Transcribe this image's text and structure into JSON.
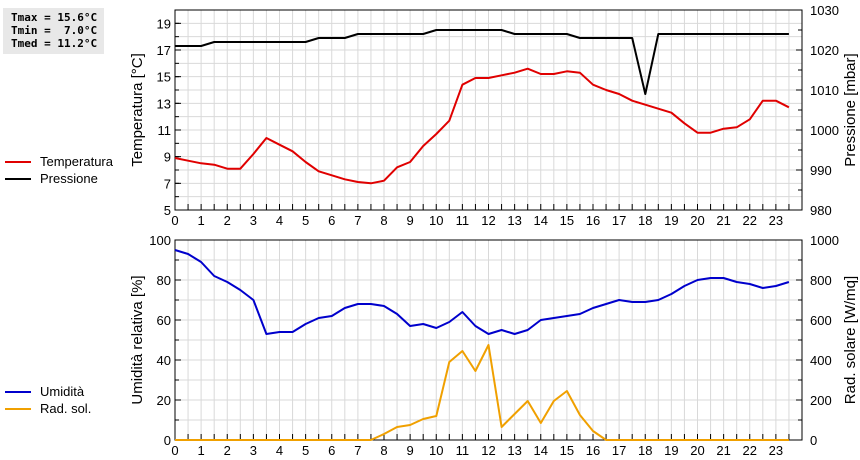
{
  "stats": {
    "tmax": "Tmax = 15.6°C",
    "tmin": "Tmin =  7.0°C",
    "tmed": "Tmed = 11.2°C"
  },
  "legend_top": [
    {
      "label": "Temperatura",
      "color": "#e00000"
    },
    {
      "label": "Pressione",
      "color": "#000000"
    }
  ],
  "legend_bottom": [
    {
      "label": "Umidità",
      "color": "#0000cc"
    },
    {
      "label": "Rad. sol.",
      "color": "#f0a000"
    }
  ],
  "chart_data": [
    {
      "type": "line",
      "title": "",
      "xlabel": "",
      "ylabel": "Temperatura [°C]",
      "y2label": "Pressione [mbar]",
      "ylim": [
        5,
        20
      ],
      "y2lim": [
        980,
        1030
      ],
      "yticks": [
        5,
        7,
        9,
        11,
        13,
        15,
        17,
        19
      ],
      "y2ticks": [
        980,
        990,
        1000,
        1010,
        1020,
        1030
      ],
      "xticks": [
        0,
        1,
        2,
        3,
        4,
        5,
        6,
        7,
        8,
        9,
        10,
        11,
        12,
        13,
        14,
        15,
        16,
        17,
        18,
        19,
        20,
        21,
        22,
        23
      ],
      "grid": true,
      "legend_position": "left",
      "x": [
        0,
        0.5,
        1,
        1.5,
        2,
        2.5,
        3,
        3.5,
        4,
        4.5,
        5,
        5.5,
        6,
        6.5,
        7,
        7.5,
        8,
        8.5,
        9,
        9.5,
        10,
        10.5,
        11,
        11.5,
        12,
        12.5,
        13,
        13.5,
        14,
        14.5,
        15,
        15.5,
        16,
        16.5,
        17,
        17.5,
        18,
        18.5,
        19,
        19.5,
        20,
        20.5,
        21,
        21.5,
        22,
        22.5,
        23,
        23.5
      ],
      "series": [
        {
          "name": "Temperatura",
          "axis": "left",
          "color": "#e00000",
          "values": [
            8.9,
            8.7,
            8.5,
            8.4,
            8.1,
            8.1,
            9.2,
            10.4,
            9.9,
            9.4,
            8.6,
            7.9,
            7.6,
            7.3,
            7.1,
            7.0,
            7.2,
            8.2,
            8.6,
            9.8,
            10.7,
            11.7,
            14.4,
            14.9,
            14.9,
            15.1,
            15.3,
            15.6,
            15.2,
            15.2,
            15.4,
            15.3,
            14.4,
            14.0,
            13.7,
            13.2,
            12.9,
            12.6,
            12.3,
            11.5,
            10.8,
            10.8,
            11.1,
            11.2,
            11.8,
            13.2,
            13.2,
            12.7
          ]
        },
        {
          "name": "Pressione",
          "axis": "right",
          "color": "#000000",
          "values": [
            1021,
            1021,
            1021,
            1022,
            1022,
            1022,
            1022,
            1022,
            1022,
            1022,
            1022,
            1023,
            1023,
            1023,
            1024,
            1024,
            1024,
            1024,
            1024,
            1024,
            1025,
            1025,
            1025,
            1025,
            1025,
            1025,
            1024,
            1024,
            1024,
            1024,
            1024,
            1023,
            1023,
            1023,
            1023,
            1023,
            1009,
            1024,
            1024,
            1024,
            1024,
            1024,
            1024,
            1024,
            1024,
            1024,
            1024,
            1024
          ]
        }
      ]
    },
    {
      "type": "line",
      "title": "",
      "xlabel": "",
      "ylabel": "Umidità relativa [%]",
      "y2label": "Rad. solare [W/mq]",
      "ylim": [
        0,
        100
      ],
      "y2lim": [
        0,
        1000
      ],
      "yticks": [
        0,
        20,
        40,
        60,
        80,
        100
      ],
      "y2ticks": [
        0,
        200,
        400,
        600,
        800,
        1000
      ],
      "xticks": [
        0,
        1,
        2,
        3,
        4,
        5,
        6,
        7,
        8,
        9,
        10,
        11,
        12,
        13,
        14,
        15,
        16,
        17,
        18,
        19,
        20,
        21,
        22,
        23
      ],
      "grid": true,
      "legend_position": "left",
      "x": [
        0,
        0.5,
        1,
        1.5,
        2,
        2.5,
        3,
        3.5,
        4,
        4.5,
        5,
        5.5,
        6,
        6.5,
        7,
        7.5,
        8,
        8.5,
        9,
        9.5,
        10,
        10.5,
        11,
        11.5,
        12,
        12.5,
        13,
        13.5,
        14,
        14.5,
        15,
        15.5,
        16,
        16.5,
        17,
        17.5,
        18,
        18.5,
        19,
        19.5,
        20,
        20.5,
        21,
        21.5,
        22,
        22.5,
        23,
        23.5
      ],
      "series": [
        {
          "name": "Umidità",
          "axis": "left",
          "color": "#0000cc",
          "values": [
            95,
            93,
            89,
            82,
            79,
            75,
            70,
            53,
            54,
            54,
            58,
            61,
            62,
            66,
            68,
            68,
            67,
            63,
            57,
            58,
            56,
            59,
            64,
            57,
            53,
            55,
            53,
            55,
            60,
            61,
            62,
            63,
            66,
            68,
            70,
            69,
            69,
            70,
            73,
            77,
            80,
            81,
            81,
            79,
            78,
            76,
            77,
            79
          ]
        },
        {
          "name": "Rad. sol.",
          "axis": "right",
          "color": "#f0a000",
          "values": [
            0,
            0,
            0,
            0,
            0,
            0,
            0,
            0,
            0,
            0,
            0,
            0,
            0,
            0,
            0,
            0,
            30,
            65,
            75,
            105,
            120,
            390,
            445,
            345,
            475,
            65,
            130,
            195,
            85,
            195,
            245,
            125,
            45,
            0,
            0,
            0,
            0,
            0,
            0,
            0,
            0,
            0,
            0,
            0,
            0,
            0,
            0,
            0
          ]
        }
      ]
    }
  ]
}
